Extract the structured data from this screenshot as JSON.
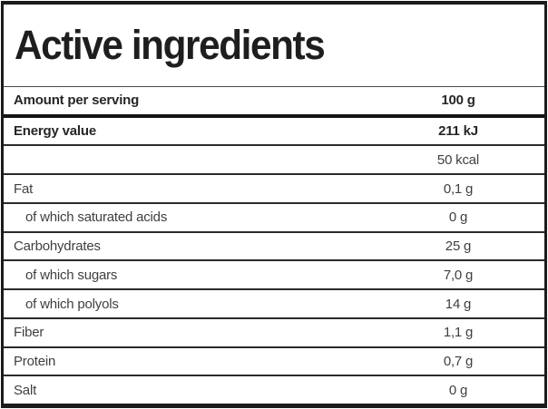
{
  "title": "Active ingredients",
  "table": {
    "rows": [
      {
        "label": "Amount per serving",
        "value": "100 g",
        "style": "bold header, thick rule below"
      },
      {
        "label": "Energy value",
        "value": "211 kJ",
        "style": "bold"
      },
      {
        "label": "",
        "value": "50 kcal",
        "style": "regular, continuation of energy value"
      },
      {
        "label": "Fat",
        "value": "0,1 g",
        "style": "regular"
      },
      {
        "label": "of which saturated acids",
        "value": "0 g",
        "style": "indented"
      },
      {
        "label": "Carbohydrates",
        "value": "25 g",
        "style": "regular"
      },
      {
        "label": "of which sugars",
        "value": "7,0 g",
        "style": "indented"
      },
      {
        "label": "of which polyols",
        "value": "14 g",
        "style": "indented"
      },
      {
        "label": "Fiber",
        "value": "1,1 g",
        "style": "regular"
      },
      {
        "label": "Protein",
        "value": "0,7 g",
        "style": "regular"
      },
      {
        "label": "Salt",
        "value": "0 g",
        "style": "regular"
      }
    ]
  },
  "colors": {
    "outer_border": "#1b1b1b",
    "row_separator": "#2a2a2a",
    "thick_separator": "#141414",
    "title_text": "#1e1e1e",
    "bold_row_text": "#262626",
    "row_text": "#3f3f3f",
    "background": "#ffffff"
  }
}
